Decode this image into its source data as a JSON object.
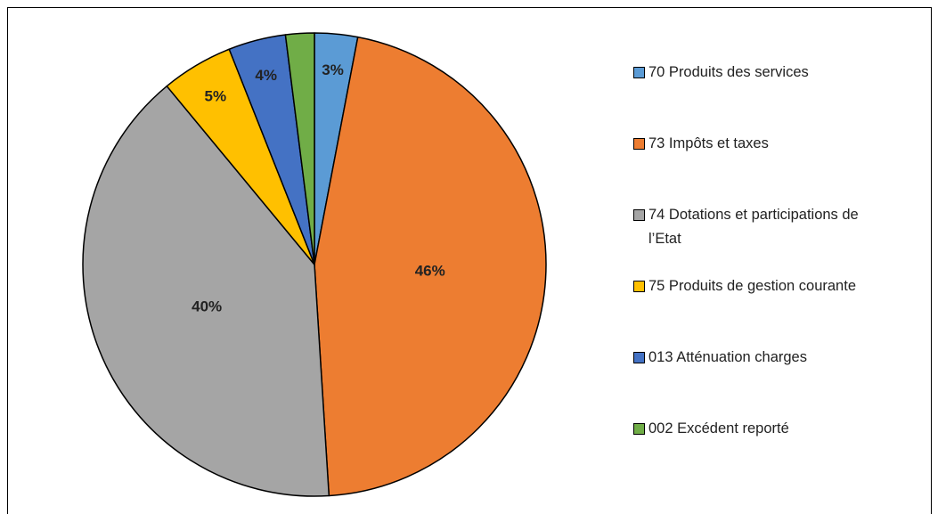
{
  "chart_data": {
    "type": "pie",
    "categories": [
      "70 Produits des services",
      "73 Impôts et taxes",
      "74 Dotations et participations de l’Etat",
      "75 Produits de gestion courante",
      "013 Atténuation charges",
      "002 Excédent reporté"
    ],
    "values": [
      3,
      46,
      40,
      5,
      4,
      2
    ],
    "value_labels": [
      "3%",
      "46%",
      "40%",
      "5%",
      "4%",
      null
    ],
    "colors": [
      "#5b9bd5",
      "#ed7d31",
      "#a5a5a5",
      "#ffc000",
      "#4472c4",
      "#70ad47"
    ],
    "legend": "right"
  }
}
